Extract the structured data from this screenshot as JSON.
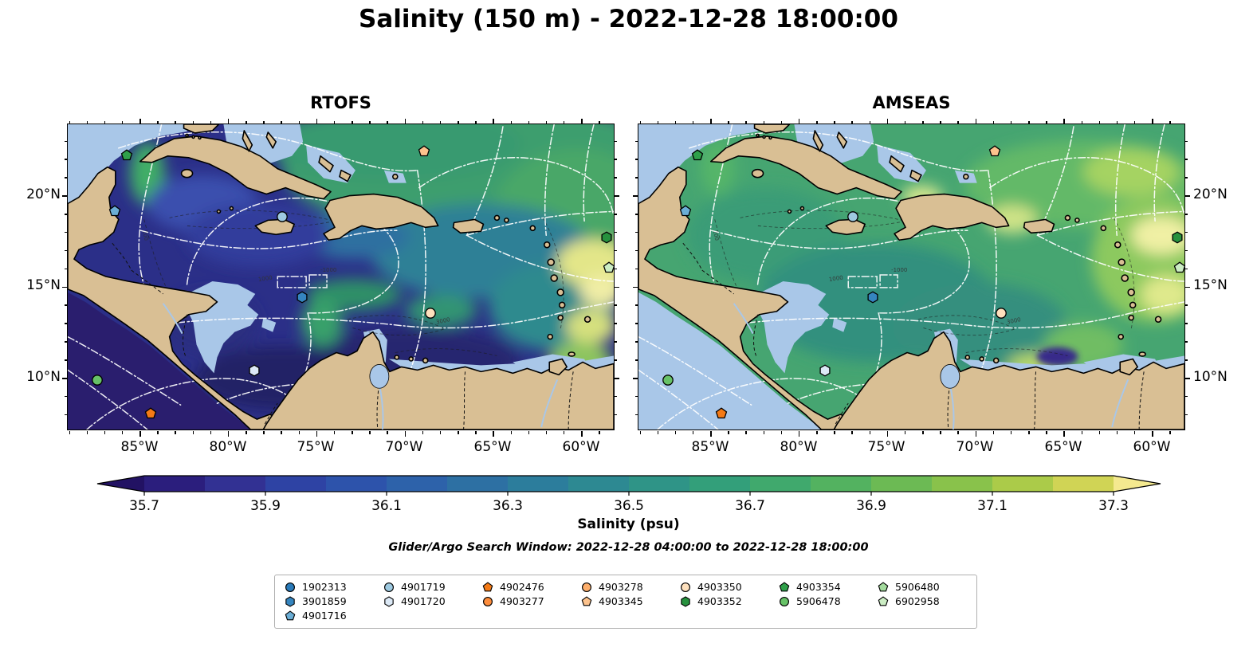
{
  "figure": {
    "title": "Salinity (150 m) - 2022-12-28 18:00:00",
    "caption": "Glider/Argo Search Window: 2022-12-28 04:00:00 to 2022-12-28 18:00:00"
  },
  "panels": [
    {
      "key": "rtofs",
      "title": "RTOFS"
    },
    {
      "key": "amseas",
      "title": "AMSEAS"
    }
  ],
  "axes": {
    "lat_labels": [
      {
        "text": "20°N",
        "deg": 20
      },
      {
        "text": "15°N",
        "deg": 15
      },
      {
        "text": "10°N",
        "deg": 10
      }
    ],
    "lon_labels": [
      {
        "text": "85°W",
        "deg": 85
      },
      {
        "text": "80°W",
        "deg": 80
      },
      {
        "text": "75°W",
        "deg": 75
      },
      {
        "text": "70°W",
        "deg": 70
      },
      {
        "text": "65°W",
        "deg": 65
      },
      {
        "text": "60°W",
        "deg": 60
      }
    ]
  },
  "colorbar": {
    "label": "Salinity (psu)",
    "ticks": [
      "35.7",
      "35.9",
      "36.1",
      "36.3",
      "36.5",
      "36.7",
      "36.9",
      "37.1",
      "37.3"
    ],
    "range": [
      35.7,
      37.3
    ],
    "under_color": "#221263",
    "over_color": "#f4e98f",
    "segment_colors": [
      "#2b1e7d",
      "#323193",
      "#2e43a4",
      "#2d53ab",
      "#2d62aa",
      "#2d70a3",
      "#2c7d9c",
      "#2d8992",
      "#2f9487",
      "#339f7a",
      "#40a96d",
      "#53b260",
      "#6cba54",
      "#89c24b",
      "#abcb49",
      "#d0d455"
    ]
  },
  "legend": {
    "columns": [
      [
        {
          "id": "1902313",
          "shape": "circle",
          "color": "#2a7ab9"
        },
        {
          "id": "3901859",
          "shape": "hexagon",
          "color": "#3585bf"
        },
        {
          "id": "4901716",
          "shape": "pentagon",
          "color": "#6baed6"
        }
      ],
      [
        {
          "id": "4901719",
          "shape": "circle",
          "color": "#9ecae1"
        },
        {
          "id": "4901720",
          "shape": "hexagon",
          "color": "#dce9f6"
        }
      ],
      [
        {
          "id": "4902476",
          "shape": "pentagon",
          "color": "#f47a16"
        },
        {
          "id": "4903277",
          "shape": "circle",
          "color": "#fd8d3c"
        }
      ],
      [
        {
          "id": "4903278",
          "shape": "circle",
          "color": "#fdae6b"
        },
        {
          "id": "4903345",
          "shape": "pentagon",
          "color": "#fdc38d"
        }
      ],
      [
        {
          "id": "4903350",
          "shape": "circle",
          "color": "#fde0bd"
        },
        {
          "id": "4903352",
          "shape": "hexagon",
          "color": "#27913e"
        }
      ],
      [
        {
          "id": "4903354",
          "shape": "pentagon",
          "color": "#2fa04a"
        },
        {
          "id": "5906478",
          "shape": "circle",
          "color": "#67c267"
        }
      ],
      [
        {
          "id": "5906480",
          "shape": "pentagon",
          "color": "#a3da9d"
        },
        {
          "id": "6902958",
          "shape": "pentagon",
          "color": "#ccedc4"
        }
      ]
    ]
  },
  "floats_on_map": [
    {
      "id": "4903354",
      "shape": "pentagon",
      "color": "#2fa04a",
      "fx": 0.108,
      "fy": 0.102
    },
    {
      "id": "4903345",
      "shape": "pentagon",
      "color": "#fdc38d",
      "fx": 0.65,
      "fy": 0.088
    },
    {
      "id": "4901716",
      "shape": "pentagon",
      "color": "#6baed6",
      "fx": 0.086,
      "fy": 0.284
    },
    {
      "id": "4901719",
      "shape": "circle",
      "color": "#9ecae1",
      "fx": 0.392,
      "fy": 0.3
    },
    {
      "id": "4903352",
      "shape": "hexagon",
      "color": "#27913e",
      "fx": 0.984,
      "fy": 0.368
    },
    {
      "id": "6902958",
      "shape": "pentagon",
      "color": "#ccedc4",
      "fx": 0.988,
      "fy": 0.468
    },
    {
      "id": "3901859",
      "shape": "hexagon",
      "color": "#3585bf",
      "fx": 0.428,
      "fy": 0.563
    },
    {
      "id": "4903350",
      "shape": "circle",
      "color": "#fde0bd",
      "fx": 0.662,
      "fy": 0.615
    },
    {
      "id": "4901720",
      "shape": "hexagon",
      "color": "#dce9f6",
      "fx": 0.34,
      "fy": 0.802
    },
    {
      "id": "5906478",
      "shape": "circle",
      "color": "#67c267",
      "fx": 0.054,
      "fy": 0.835
    },
    {
      "id": "4902476",
      "shape": "pentagon",
      "color": "#f47a16",
      "fx": 0.152,
      "fy": 0.942
    }
  ],
  "map_colors": {
    "land": "#d9bf94",
    "masked_shallow": "#a9c7e8",
    "rtofs_ocean_base": "#2b2f88",
    "rtofs_pacific": "#2a1e6e",
    "amseas_ocean_base": "#46a571",
    "amseas_pacific": "#a9c7e8"
  }
}
